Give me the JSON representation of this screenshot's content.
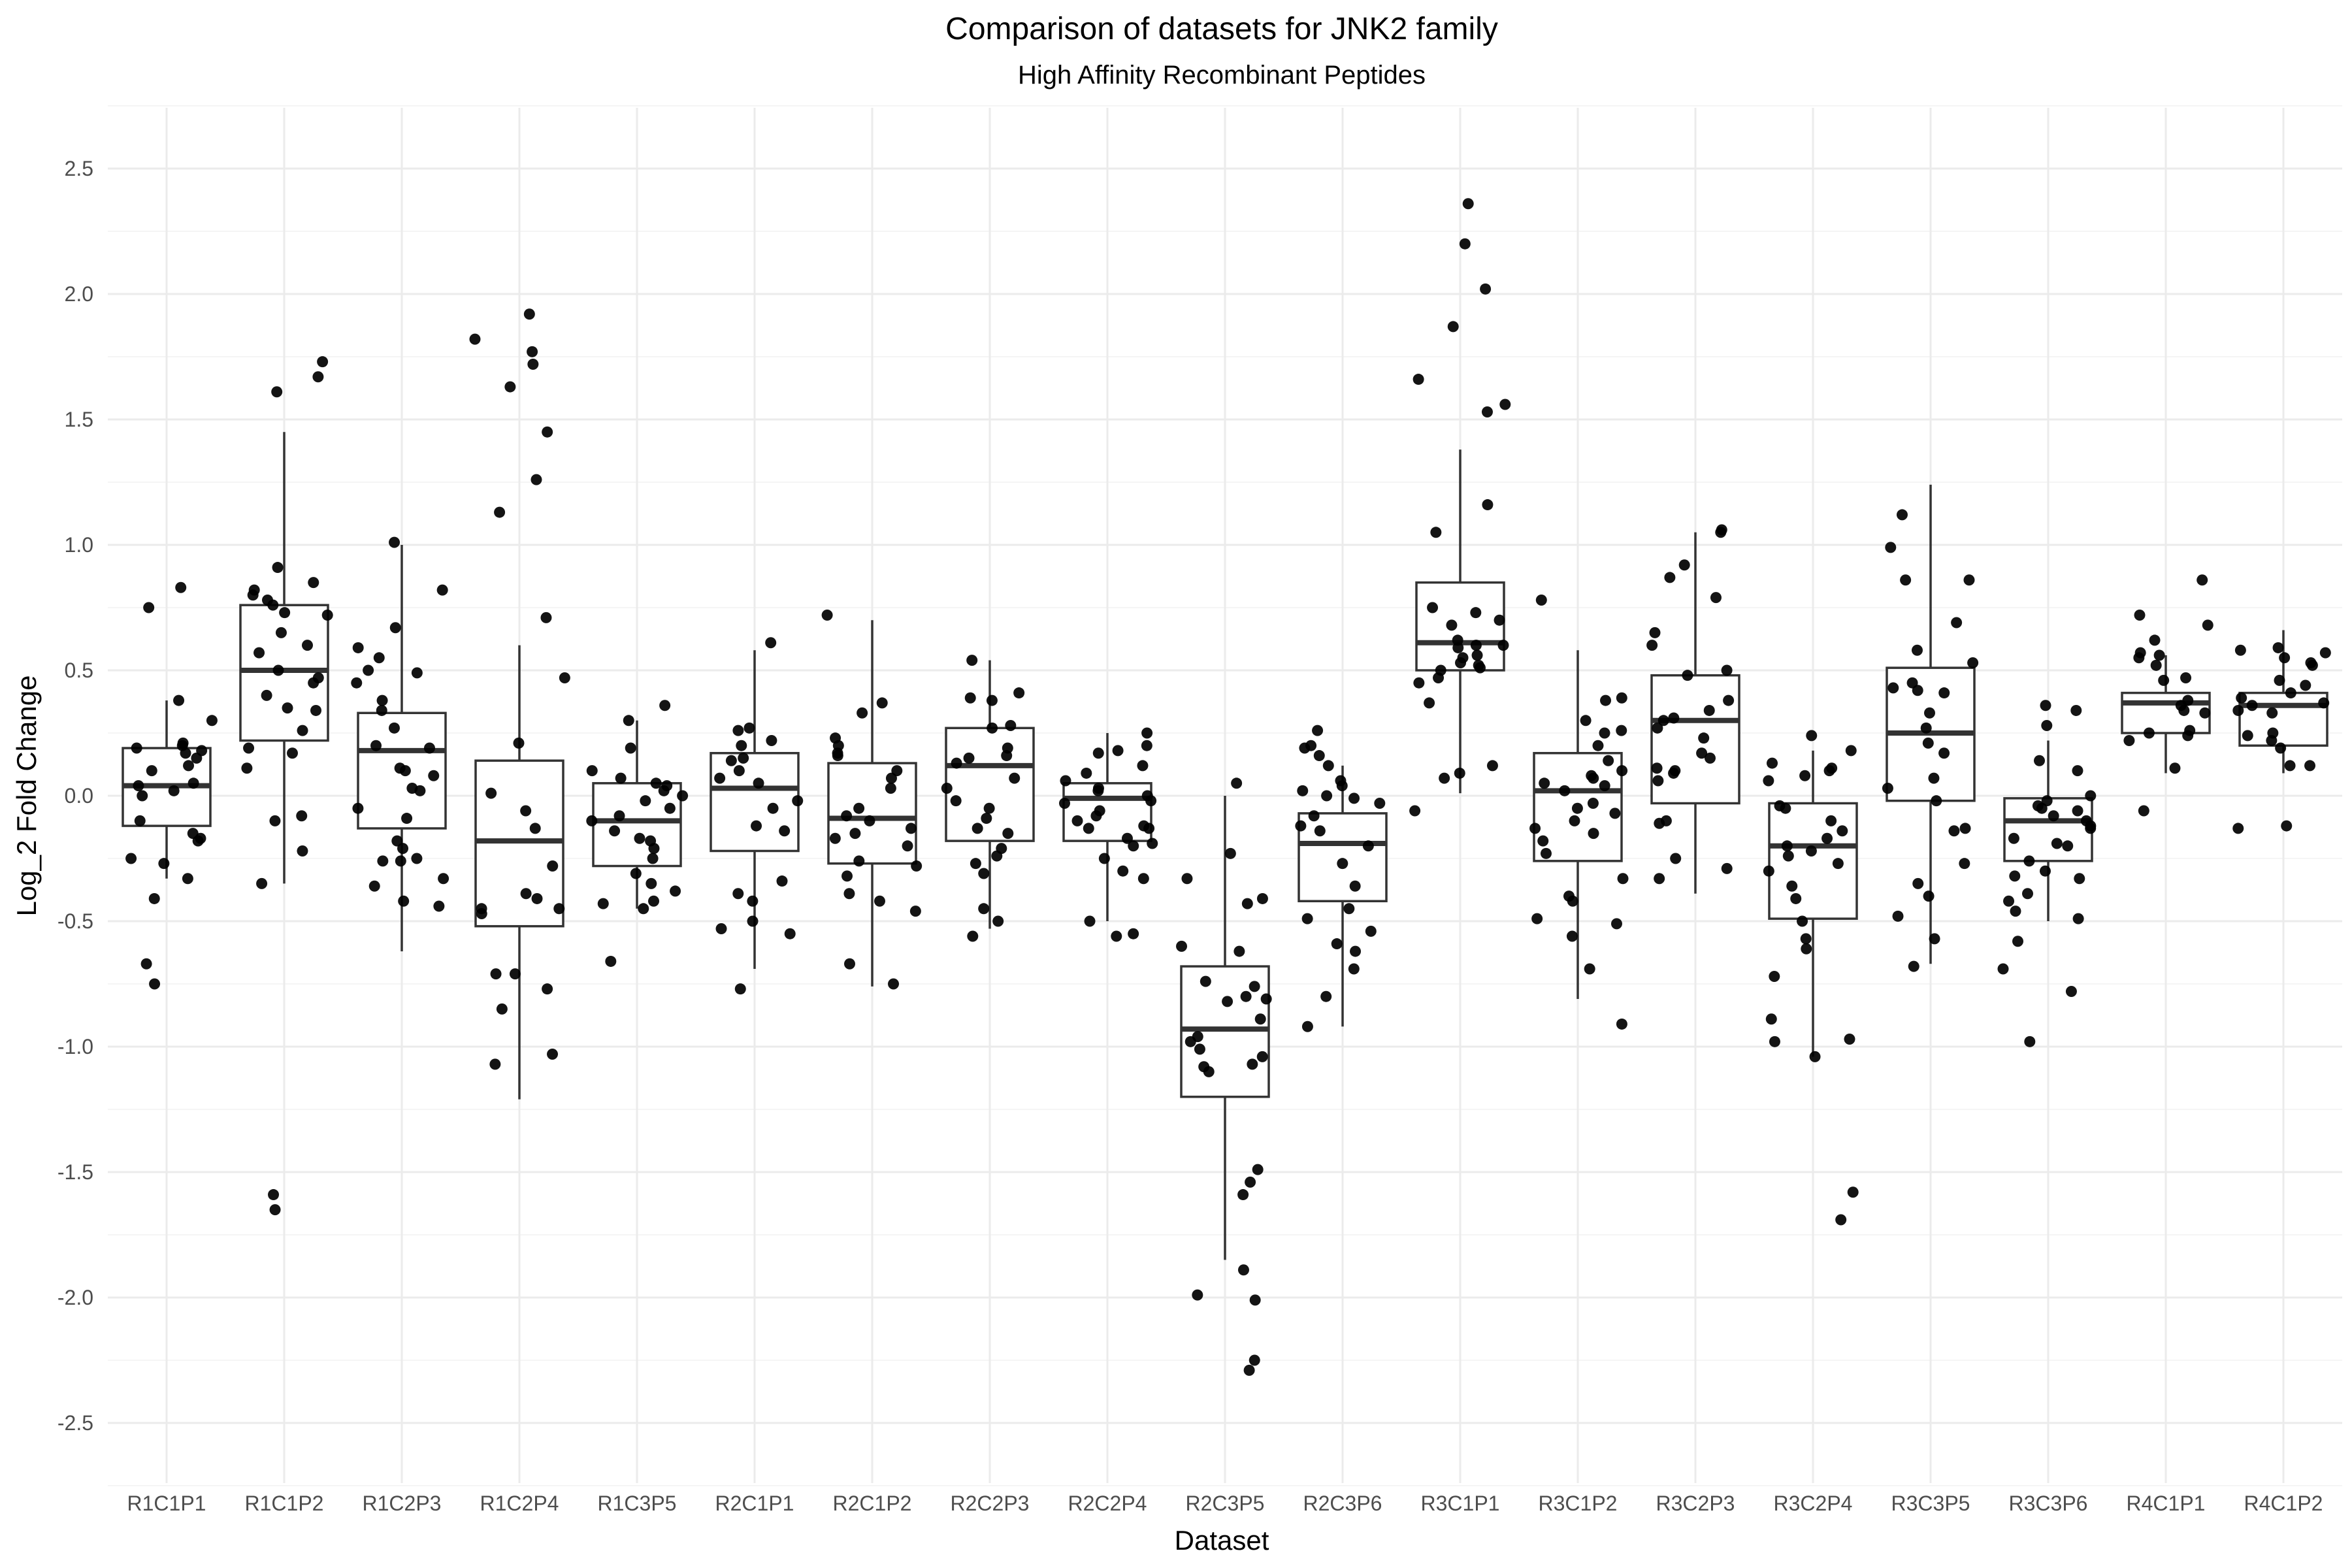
{
  "chart_data": {
    "type": "box",
    "title": "Comparison of datasets for JNK2 family",
    "subtitle": "High Affinity Recombinant Peptides",
    "xlabel": "Dataset",
    "ylabel": "Log_2 Fold Change",
    "ylim": [
      -2.75,
      2.75
    ],
    "yticks": [
      2.5,
      2.0,
      1.5,
      1.0,
      0.5,
      0.0,
      -0.5,
      -1.0,
      -1.5,
      -2.0,
      -2.5
    ],
    "ytick_labels": [
      "2.5",
      "2.0",
      "1.5",
      "1.0",
      "0.5",
      "0.0",
      "-0.5",
      "-1.0",
      "-1.5",
      "-2.0",
      "-2.5"
    ],
    "grid": true,
    "colors": {
      "box_fill": "#ffffff",
      "box_line": "#333333",
      "point": "#000000",
      "grid_major": "#ebebeb",
      "grid_minor": "#f5f5f5"
    },
    "categories": [
      "R1C1P1",
      "R1C1P2",
      "R1C2P3",
      "R1C2P4",
      "R1C3P5",
      "R2C1P1",
      "R2C1P2",
      "R2C2P3",
      "R2C2P4",
      "R2C3P5",
      "R2C3P6",
      "R3C1P1",
      "R3C1P2",
      "R3C2P3",
      "R3C2P4",
      "R3C3P5",
      "R3C3P6",
      "R4C1P1",
      "R4C1P2"
    ],
    "boxes": [
      {
        "min": -0.33,
        "q1": -0.12,
        "median": 0.04,
        "q3": 0.19,
        "max": 0.38
      },
      {
        "min": -0.35,
        "q1": 0.22,
        "median": 0.5,
        "q3": 0.76,
        "max": 1.45
      },
      {
        "min": -0.62,
        "q1": -0.13,
        "median": 0.18,
        "q3": 0.33,
        "max": 1.0
      },
      {
        "min": -1.21,
        "q1": -0.52,
        "median": -0.18,
        "q3": 0.14,
        "max": 0.6
      },
      {
        "min": -0.45,
        "q1": -0.28,
        "median": -0.1,
        "q3": 0.05,
        "max": 0.3
      },
      {
        "min": -0.69,
        "q1": -0.22,
        "median": 0.03,
        "q3": 0.17,
        "max": 0.58
      },
      {
        "min": -0.76,
        "q1": -0.27,
        "median": -0.09,
        "q3": 0.13,
        "max": 0.7
      },
      {
        "min": -0.53,
        "q1": -0.18,
        "median": 0.12,
        "q3": 0.27,
        "max": 0.54
      },
      {
        "min": -0.5,
        "q1": -0.18,
        "median": -0.01,
        "q3": 0.05,
        "max": 0.25
      },
      {
        "min": -1.85,
        "q1": -1.2,
        "median": -0.93,
        "q3": -0.68,
        "max": 0.0
      },
      {
        "min": -0.92,
        "q1": -0.42,
        "median": -0.19,
        "q3": -0.07,
        "max": 0.12
      },
      {
        "min": 0.01,
        "q1": 0.5,
        "median": 0.61,
        "q3": 0.85,
        "max": 1.38
      },
      {
        "min": -0.81,
        "q1": -0.26,
        "median": 0.02,
        "q3": 0.17,
        "max": 0.58
      },
      {
        "min": -0.39,
        "q1": -0.03,
        "median": 0.3,
        "q3": 0.48,
        "max": 1.05
      },
      {
        "min": -1.04,
        "q1": -0.49,
        "median": -0.2,
        "q3": -0.03,
        "max": 0.18
      },
      {
        "min": -0.67,
        "q1": -0.02,
        "median": 0.25,
        "q3": 0.51,
        "max": 1.24
      },
      {
        "min": -0.5,
        "q1": -0.26,
        "median": -0.1,
        "q3": -0.01,
        "max": 0.22
      },
      {
        "min": 0.09,
        "q1": 0.25,
        "median": 0.37,
        "q3": 0.41,
        "max": 0.56
      },
      {
        "min": 0.09,
        "q1": 0.2,
        "median": 0.36,
        "q3": 0.41,
        "max": 0.66
      }
    ],
    "points": [
      [
        0.83,
        0.75,
        0.38,
        0.3,
        0.21,
        0.2,
        0.19,
        0.18,
        0.17,
        0.15,
        0.12,
        0.1,
        0.05,
        0.04,
        0.02,
        0.0,
        -0.1,
        -0.15,
        -0.17,
        -0.18,
        -0.25,
        -0.27,
        -0.33,
        -0.41,
        -0.67,
        -0.75
      ],
      [
        1.73,
        1.67,
        1.61,
        0.91,
        0.85,
        0.82,
        0.8,
        0.78,
        0.76,
        0.73,
        0.72,
        0.65,
        0.6,
        0.57,
        0.5,
        0.47,
        0.45,
        0.4,
        0.35,
        0.34,
        0.26,
        0.19,
        0.17,
        0.11,
        -0.08,
        -0.1,
        -0.22,
        -0.35,
        -1.59,
        -1.65
      ],
      [
        1.01,
        0.82,
        0.67,
        0.59,
        0.55,
        0.5,
        0.49,
        0.45,
        0.38,
        0.34,
        0.27,
        0.2,
        0.19,
        0.11,
        0.1,
        0.08,
        0.03,
        0.02,
        -0.05,
        -0.09,
        -0.18,
        -0.21,
        -0.25,
        -0.26,
        -0.26,
        -0.33,
        -0.36,
        -0.42,
        -0.44
      ],
      [
        1.92,
        1.82,
        1.77,
        1.72,
        1.63,
        1.45,
        1.26,
        1.13,
        0.71,
        0.47,
        0.21,
        0.01,
        -0.06,
        -0.13,
        -0.28,
        -0.39,
        -0.41,
        -0.45,
        -0.45,
        -0.47,
        -0.71,
        -0.71,
        -0.77,
        -0.85,
        -1.03,
        -1.07
      ],
      [
        0.36,
        0.3,
        0.19,
        0.1,
        0.07,
        0.05,
        0.04,
        0.02,
        0.0,
        -0.02,
        -0.05,
        -0.08,
        -0.1,
        -0.14,
        -0.17,
        -0.18,
        -0.21,
        -0.25,
        -0.31,
        -0.35,
        -0.38,
        -0.42,
        -0.43,
        -0.45,
        -0.66
      ],
      [
        0.61,
        0.27,
        0.26,
        0.22,
        0.2,
        0.15,
        0.14,
        0.1,
        0.07,
        0.05,
        -0.02,
        -0.05,
        -0.12,
        -0.14,
        -0.34,
        -0.39,
        -0.42,
        -0.5,
        -0.53,
        -0.55,
        -0.77
      ],
      [
        0.72,
        0.37,
        0.33,
        0.23,
        0.2,
        0.17,
        0.16,
        0.1,
        0.07,
        0.03,
        -0.05,
        -0.08,
        -0.1,
        -0.13,
        -0.15,
        -0.17,
        -0.2,
        -0.26,
        -0.28,
        -0.32,
        -0.39,
        -0.42,
        -0.46,
        -0.67,
        -0.75
      ],
      [
        0.54,
        0.41,
        0.39,
        0.38,
        0.28,
        0.27,
        0.19,
        0.16,
        0.15,
        0.13,
        0.07,
        0.03,
        -0.02,
        -0.05,
        -0.09,
        -0.13,
        -0.15,
        -0.21,
        -0.24,
        -0.27,
        -0.31,
        -0.45,
        -0.5,
        -0.56
      ],
      [
        0.25,
        0.2,
        0.18,
        0.17,
        0.12,
        0.09,
        0.06,
        0.03,
        0.02,
        0.0,
        -0.02,
        -0.03,
        -0.06,
        -0.08,
        -0.1,
        -0.12,
        -0.13,
        -0.13,
        -0.17,
        -0.19,
        -0.2,
        -0.25,
        -0.3,
        -0.33,
        -0.5,
        -0.55,
        -0.56
      ],
      [
        0.05,
        -0.23,
        -0.33,
        -0.41,
        -0.43,
        -0.6,
        -0.62,
        -0.74,
        -0.76,
        -0.8,
        -0.81,
        -0.82,
        -0.89,
        -0.96,
        -0.98,
        -1.01,
        -1.04,
        -1.07,
        -1.08,
        -1.1,
        -1.49,
        -1.54,
        -1.59,
        -1.89,
        -1.99,
        -2.01,
        -2.25,
        -2.29
      ],
      [
        0.26,
        0.2,
        0.19,
        0.16,
        0.12,
        0.06,
        0.04,
        0.02,
        0.0,
        -0.01,
        -0.03,
        -0.08,
        -0.12,
        -0.14,
        -0.2,
        -0.27,
        -0.36,
        -0.45,
        -0.49,
        -0.54,
        -0.59,
        -0.62,
        -0.69,
        -0.8,
        -0.92
      ],
      [
        2.36,
        2.2,
        2.02,
        1.87,
        1.66,
        1.56,
        1.53,
        1.16,
        1.05,
        0.75,
        0.73,
        0.7,
        0.68,
        0.62,
        0.6,
        0.6,
        0.59,
        0.56,
        0.55,
        0.53,
        0.52,
        0.51,
        0.5,
        0.47,
        0.45,
        0.37,
        0.12,
        0.09,
        0.07,
        -0.06
      ],
      [
        0.78,
        0.39,
        0.38,
        0.3,
        0.26,
        0.25,
        0.2,
        0.14,
        0.1,
        0.08,
        0.07,
        0.05,
        0.04,
        0.02,
        -0.03,
        -0.05,
        -0.07,
        -0.1,
        -0.13,
        -0.15,
        -0.18,
        -0.23,
        -0.33,
        -0.4,
        -0.42,
        -0.49,
        -0.51,
        -0.56,
        -0.69,
        -0.91
      ],
      [
        1.06,
        1.05,
        0.92,
        0.87,
        0.79,
        0.65,
        0.6,
        0.5,
        0.48,
        0.38,
        0.34,
        0.31,
        0.3,
        0.27,
        0.23,
        0.17,
        0.15,
        0.11,
        0.1,
        0.09,
        0.06,
        -0.1,
        -0.11,
        -0.25,
        -0.29,
        -0.33
      ],
      [
        0.24,
        0.18,
        0.13,
        0.11,
        0.1,
        0.08,
        0.06,
        -0.04,
        -0.05,
        -0.1,
        -0.14,
        -0.17,
        -0.2,
        -0.22,
        -0.24,
        -0.27,
        -0.3,
        -0.36,
        -0.41,
        -0.5,
        -0.57,
        -0.61,
        -0.72,
        -0.89,
        -0.97,
        -0.98,
        -1.04,
        -1.58,
        -1.69
      ],
      [
        1.12,
        0.99,
        0.86,
        0.86,
        0.69,
        0.58,
        0.53,
        0.45,
        0.43,
        0.42,
        0.41,
        0.33,
        0.27,
        0.21,
        0.17,
        0.07,
        0.03,
        -0.02,
        -0.13,
        -0.14,
        -0.27,
        -0.35,
        -0.4,
        -0.48,
        -0.57,
        -0.68
      ],
      [
        0.36,
        0.34,
        0.28,
        0.14,
        0.1,
        0.0,
        -0.02,
        -0.04,
        -0.05,
        -0.06,
        -0.08,
        -0.1,
        -0.12,
        -0.13,
        -0.17,
        -0.19,
        -0.2,
        -0.26,
        -0.3,
        -0.32,
        -0.33,
        -0.39,
        -0.42,
        -0.46,
        -0.49,
        -0.58,
        -0.69,
        -0.78,
        -0.98
      ],
      [
        0.86,
        0.72,
        0.68,
        0.62,
        0.57,
        0.56,
        0.55,
        0.52,
        0.47,
        0.46,
        0.38,
        0.36,
        0.34,
        0.33,
        0.26,
        0.25,
        0.24,
        0.22,
        0.11,
        -0.06
      ],
      [
        0.59,
        0.58,
        0.57,
        0.55,
        0.53,
        0.52,
        0.46,
        0.44,
        0.41,
        0.39,
        0.37,
        0.36,
        0.34,
        0.33,
        0.25,
        0.24,
        0.22,
        0.19,
        0.12,
        0.12,
        -0.12,
        -0.13
      ]
    ]
  }
}
